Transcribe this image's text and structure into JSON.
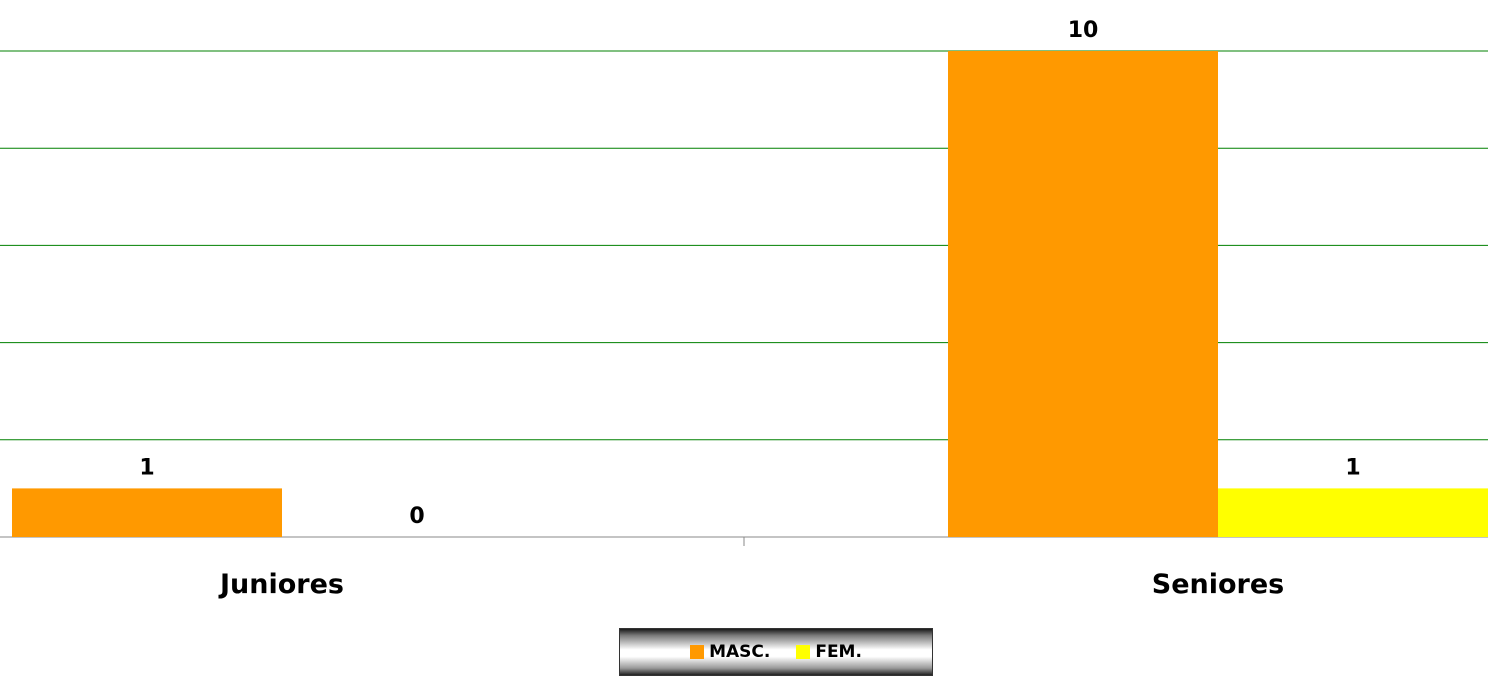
{
  "chart_data": {
    "type": "bar",
    "categories": [
      "Juniores",
      "Seniores"
    ],
    "series": [
      {
        "name": "MASC.",
        "values": [
          1,
          10
        ],
        "color": "#FF9900"
      },
      {
        "name": "FEM.",
        "values": [
          0,
          1
        ],
        "color": "#FFFF00"
      }
    ],
    "ylim": [
      0,
      10
    ],
    "grid": true,
    "grid_color": "#008000",
    "legend_position": "bottom",
    "title": "",
    "xlabel": "",
    "ylabel": ""
  }
}
